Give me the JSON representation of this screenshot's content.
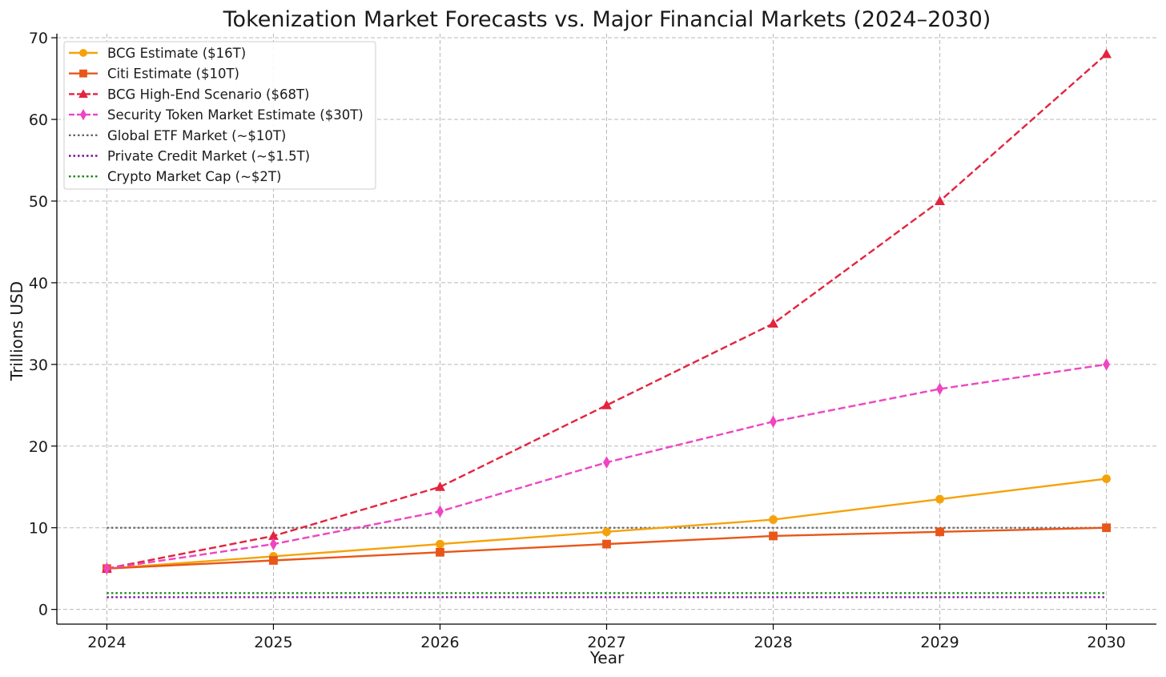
{
  "chart_data": {
    "type": "line",
    "title": "Tokenization Market Forecasts vs. Major Financial Markets (2024–2030)",
    "xlabel": "Year",
    "ylabel": "Trillions USD",
    "x": [
      2024,
      2025,
      2026,
      2027,
      2028,
      2029,
      2030
    ],
    "x_ticks": [
      "2024",
      "2025",
      "2026",
      "2027",
      "2028",
      "2029",
      "2030"
    ],
    "y_ticks": [
      "0",
      "10",
      "20",
      "30",
      "40",
      "50",
      "60",
      "70"
    ],
    "ylim": [
      -1.8,
      70.5
    ],
    "grid": true,
    "legend_position": "top-left",
    "series": [
      {
        "name": "BCG Estimate ($16T)",
        "values": [
          5,
          6.5,
          8,
          9.5,
          11,
          13.5,
          16
        ],
        "color": "#f5a20a",
        "line": "solid",
        "marker": "circle"
      },
      {
        "name": "Citi Estimate ($10T)",
        "values": [
          5,
          6,
          7,
          8,
          9,
          9.5,
          10
        ],
        "color": "#e8561a",
        "line": "solid",
        "marker": "square"
      },
      {
        "name": "BCG High-End Scenario ($68T)",
        "values": [
          5,
          9,
          15,
          25,
          35,
          50,
          68
        ],
        "color": "#e3243f",
        "line": "dashed",
        "marker": "triangle"
      },
      {
        "name": "Security Token Market Estimate ($30T)",
        "values": [
          5,
          8,
          12,
          18,
          23,
          27,
          30
        ],
        "color": "#ee45c2",
        "line": "dashed",
        "marker": "thin-diamond"
      },
      {
        "name": "Global ETF Market (~$10T)",
        "values": [
          10,
          10,
          10,
          10,
          10,
          10,
          10
        ],
        "color": "#666666",
        "line": "dotted",
        "marker": "none"
      },
      {
        "name": "Private Credit Market (~$1.5T)",
        "values": [
          1.5,
          1.5,
          1.5,
          1.5,
          1.5,
          1.5,
          1.5
        ],
        "color": "#7b0a9e",
        "line": "dotted",
        "marker": "none"
      },
      {
        "name": "Crypto Market Cap (~$2T)",
        "values": [
          2,
          2,
          2,
          2,
          2,
          2,
          2
        ],
        "color": "#138a13",
        "line": "dotted",
        "marker": "none"
      }
    ]
  }
}
